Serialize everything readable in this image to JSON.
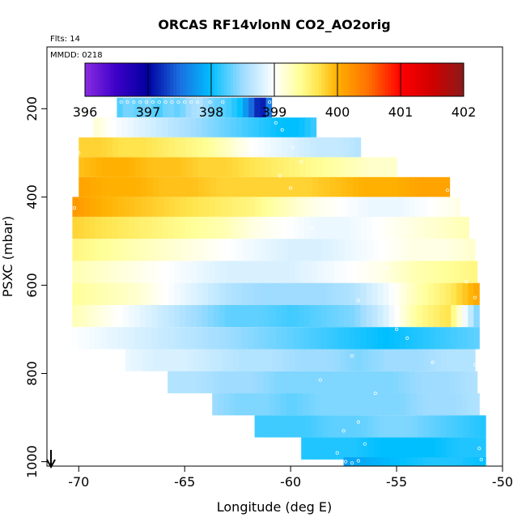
{
  "chart_data": {
    "type": "heatmap",
    "title": "ORCAS RF14vlonN CO2_AO2orig",
    "flights_note": "Flts: 14",
    "date_note": "MMDD: 0218",
    "xlabel": "Longitude (deg E)",
    "ylabel": "PSXC (mbar)",
    "xlim": [
      -71.5,
      -50
    ],
    "ylim": [
      1010,
      60
    ],
    "x_ticks": [
      -70,
      -65,
      -60,
      -55,
      -50
    ],
    "x_tick_labels": [
      "-70",
      "-65",
      "-60",
      "-55",
      "-50"
    ],
    "y_ticks": [
      200,
      400,
      600,
      800,
      1000
    ],
    "y_tick_labels": [
      "200",
      "400",
      "600",
      "800",
      "1000"
    ],
    "colorbar": {
      "min": 396,
      "max": 402,
      "ticks": [
        396,
        397,
        398,
        399,
        400,
        401,
        402
      ],
      "tick_labels": [
        "396",
        "397",
        "398",
        "399",
        "400",
        "401",
        "402"
      ],
      "stops": [
        {
          "v": 396,
          "c": "#8a2be2"
        },
        {
          "v": 396.5,
          "c": "#3c00c8"
        },
        {
          "v": 397,
          "c": "#0000a0"
        },
        {
          "v": 397.5,
          "c": "#1a6fe0"
        },
        {
          "v": 398,
          "c": "#00bfff"
        },
        {
          "v": 398.5,
          "c": "#9fdcff"
        },
        {
          "v": 399,
          "c": "#ffffff"
        },
        {
          "v": 399.4,
          "c": "#ffff99"
        },
        {
          "v": 399.7,
          "c": "#ffe44d"
        },
        {
          "v": 400,
          "c": "#ffb000"
        },
        {
          "v": 400.5,
          "c": "#ff7000"
        },
        {
          "v": 401,
          "c": "#ff0000"
        },
        {
          "v": 401.5,
          "c": "#d00000"
        },
        {
          "v": 402,
          "c": "#8b1a1a"
        }
      ]
    },
    "bands": [
      {
        "p_top": 175,
        "p_bot": 220,
        "lon_min": -68.2,
        "lon_max": -60.9,
        "values": [
          398.2,
          398.4,
          398.3,
          398.4,
          398.2,
          398.4,
          398.3,
          398.5,
          398.6,
          398.4,
          398.3,
          398.2,
          398.0,
          397.5,
          397.0,
          397.8
        ]
      },
      {
        "p_top": 220,
        "p_bot": 265,
        "lon_min": -69.3,
        "lon_max": -58.8,
        "values": [
          399.2,
          399.0,
          398.9,
          398.8,
          398.7,
          398.6,
          398.5,
          398.4,
          398.3,
          398.2,
          398.1,
          398.0,
          398.0,
          398.2
        ]
      },
      {
        "p_top": 265,
        "p_bot": 310,
        "lon_min": -70.0,
        "lon_max": -56.7,
        "values": [
          399.8,
          399.8,
          399.7,
          399.7,
          399.6,
          399.5,
          399.4,
          399.2,
          399.0,
          398.9,
          398.8,
          398.7,
          398.7,
          398.6
        ]
      },
      {
        "p_top": 310,
        "p_bot": 355,
        "lon_min": -70.0,
        "lon_max": -55.0,
        "values": [
          399.9,
          400.0,
          400.0,
          399.9,
          399.9,
          399.8,
          399.8,
          399.7,
          399.6,
          399.5,
          399.4,
          399.3,
          399.2,
          399.2
        ]
      },
      {
        "p_top": 355,
        "p_bot": 400,
        "lon_min": -70.0,
        "lon_max": -52.5,
        "values": [
          400.1,
          400.0,
          400.0,
          399.9,
          399.9,
          399.8,
          399.8,
          399.8,
          399.8,
          399.9,
          400.0,
          400.0,
          400.1,
          400.1
        ]
      },
      {
        "p_top": 400,
        "p_bot": 445,
        "lon_min": -70.3,
        "lon_max": -52.0,
        "values": [
          400.2,
          400.0,
          399.9,
          399.8,
          399.7,
          399.6,
          399.5,
          399.3,
          399.1,
          399.0,
          398.9,
          398.9,
          399.0,
          399.1
        ]
      },
      {
        "p_top": 445,
        "p_bot": 495,
        "lon_min": -70.3,
        "lon_max": -51.6,
        "values": [
          399.8,
          399.7,
          399.6,
          399.5,
          399.4,
          399.3,
          399.1,
          399.0,
          398.9,
          398.9,
          399.0,
          399.1,
          399.2,
          399.3
        ]
      },
      {
        "p_top": 495,
        "p_bot": 545,
        "lon_min": -70.3,
        "lon_max": -51.3,
        "values": [
          399.5,
          399.4,
          399.3,
          399.2,
          399.1,
          399.0,
          398.9,
          398.8,
          398.8,
          398.9,
          399.0,
          399.1,
          399.1,
          399.2
        ]
      },
      {
        "p_top": 545,
        "p_bot": 595,
        "lon_min": -70.3,
        "lon_max": -51.2,
        "values": [
          399.3,
          399.2,
          399.1,
          399.0,
          398.9,
          398.8,
          398.8,
          398.8,
          398.9,
          399.0,
          399.1,
          399.3,
          399.4,
          399.5
        ]
      },
      {
        "p_top": 595,
        "p_bot": 645,
        "lon_min": -70.3,
        "lon_max": -51.1,
        "values": [
          399.4,
          399.3,
          399.2,
          399.0,
          398.8,
          398.6,
          398.5,
          398.5,
          398.5,
          398.6,
          398.9,
          399.3,
          399.6,
          400.1
        ]
      },
      {
        "p_top": 645,
        "p_bot": 695,
        "lon_min": -70.3,
        "lon_max": -51.1,
        "values": [
          399.3,
          399.1,
          398.9,
          398.7,
          398.5,
          398.3,
          398.3,
          398.2,
          398.3,
          398.4,
          398.8,
          399.4,
          399.7,
          398.3
        ]
      },
      {
        "p_top": 695,
        "p_bot": 745,
        "lon_min": -70.3,
        "lon_max": -51.1,
        "values": [
          399.0,
          398.9,
          398.8,
          398.7,
          398.6,
          398.5,
          398.4,
          398.3,
          398.2,
          398.1,
          398.0,
          398.1,
          398.2,
          398.3
        ]
      },
      {
        "p_top": 745,
        "p_bot": 795,
        "lon_min": -67.8,
        "lon_max": -51.3,
        "values": [
          398.9,
          398.8,
          398.8,
          398.7,
          398.6,
          398.6,
          398.5,
          398.5,
          398.4,
          398.5,
          398.5,
          398.6,
          398.6
        ]
      },
      {
        "p_top": 795,
        "p_bot": 845,
        "lon_min": -65.8,
        "lon_max": -51.2,
        "values": [
          398.6,
          398.6,
          398.5,
          398.5,
          398.4,
          398.4,
          398.4,
          398.4,
          398.4,
          398.5,
          398.5,
          398.6
        ]
      },
      {
        "p_top": 845,
        "p_bot": 895,
        "lon_min": -63.7,
        "lon_max": -51.1,
        "values": [
          398.5,
          398.4,
          398.4,
          398.3,
          398.4,
          398.4,
          398.4,
          398.4,
          398.5,
          398.5,
          398.6
        ]
      },
      {
        "p_top": 895,
        "p_bot": 945,
        "lon_min": -61.7,
        "lon_max": -50.8,
        "values": [
          398.2,
          398.2,
          398.2,
          398.3,
          398.3,
          398.4,
          398.4,
          398.3,
          398.2,
          398.1
        ]
      },
      {
        "p_top": 945,
        "p_bot": 995,
        "lon_min": -59.5,
        "lon_max": -50.8,
        "values": [
          398.1,
          398.1,
          398.1,
          398.0,
          398.0,
          398.0,
          398.1,
          398.1
        ]
      },
      {
        "p_top": 990,
        "p_bot": 1010,
        "lon_min": -57.5,
        "lon_max": -50.8,
        "values": [
          397.8,
          397.9,
          398.0,
          398.1,
          398.1,
          398.0
        ]
      }
    ],
    "obs_points": [
      [
        -68.0,
        185
      ],
      [
        -67.7,
        185
      ],
      [
        -67.4,
        185
      ],
      [
        -67.1,
        185
      ],
      [
        -66.8,
        185
      ],
      [
        -66.5,
        185
      ],
      [
        -66.2,
        185
      ],
      [
        -65.9,
        185
      ],
      [
        -65.6,
        185
      ],
      [
        -65.3,
        185
      ],
      [
        -65.0,
        185
      ],
      [
        -64.7,
        185
      ],
      [
        -64.4,
        185
      ],
      [
        -63.8,
        185
      ],
      [
        -63.2,
        185
      ],
      [
        -61.0,
        185
      ],
      [
        -60.7,
        232
      ],
      [
        -60.4,
        248
      ],
      [
        -70.0,
        300
      ],
      [
        -59.9,
        288
      ],
      [
        -59.5,
        320
      ],
      [
        -60.5,
        352
      ],
      [
        -60.0,
        380
      ],
      [
        -52.6,
        385
      ],
      [
        -70.2,
        425
      ],
      [
        -57.6,
        438
      ],
      [
        -59.0,
        470
      ],
      [
        -54.5,
        480
      ],
      [
        -55.5,
        560
      ],
      [
        -51.7,
        592
      ],
      [
        -51.3,
        628
      ],
      [
        -56.8,
        635
      ],
      [
        -55.0,
        700
      ],
      [
        -54.5,
        720
      ],
      [
        -57.1,
        760
      ],
      [
        -53.3,
        775
      ],
      [
        -51.3,
        780
      ],
      [
        -58.6,
        815
      ],
      [
        -56.0,
        845
      ],
      [
        -56.8,
        910
      ],
      [
        -57.5,
        930
      ],
      [
        -56.5,
        960
      ],
      [
        -57.8,
        980
      ],
      [
        -51.1,
        970
      ],
      [
        -57.4,
        1000
      ],
      [
        -57.1,
        1003
      ],
      [
        -56.8,
        998
      ],
      [
        -51.0,
        995
      ]
    ]
  }
}
